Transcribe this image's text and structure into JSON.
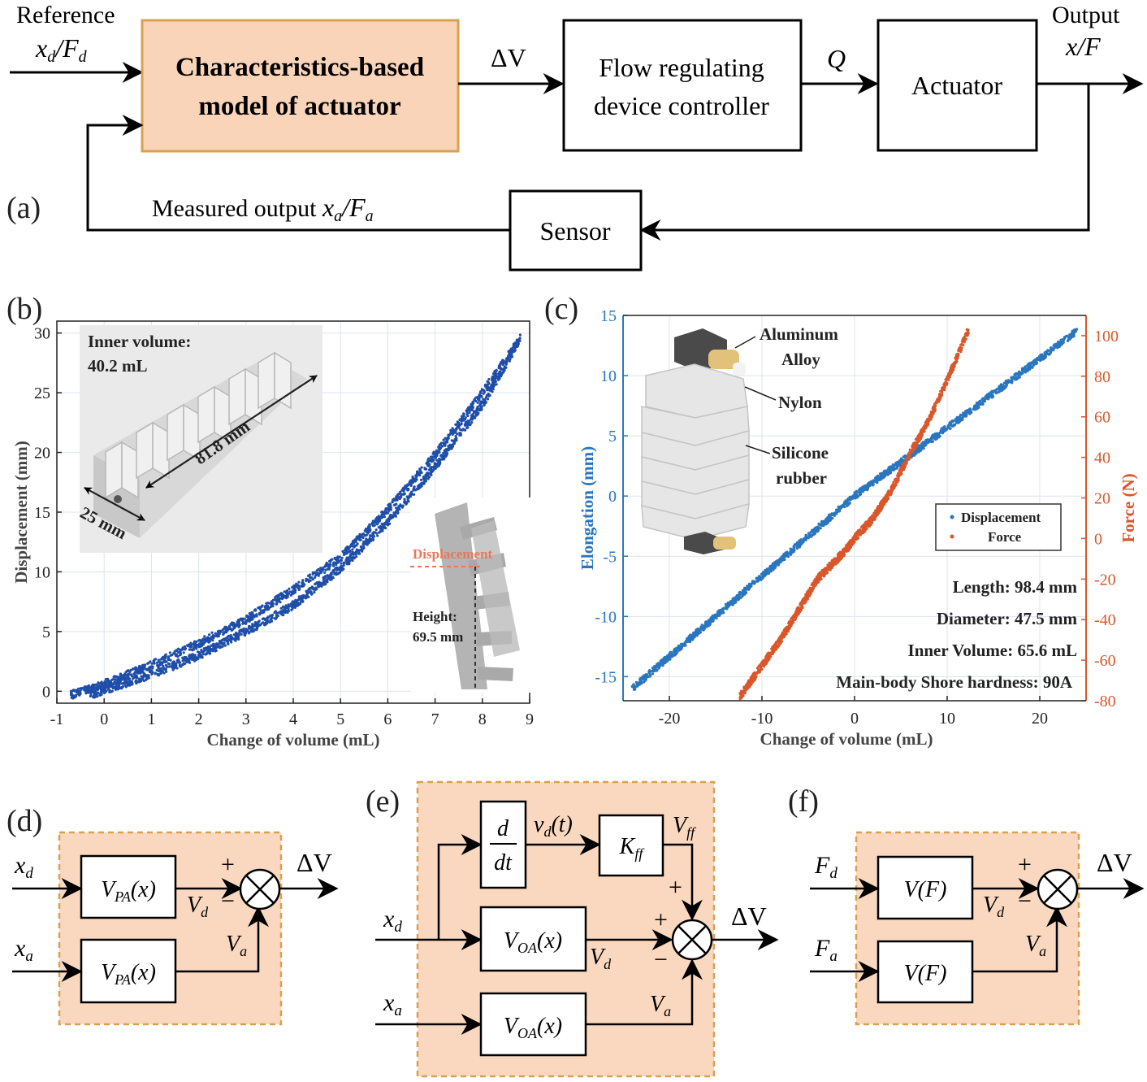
{
  "panel_a": {
    "panel_label": "(a)",
    "reference_label": "Reference",
    "reference_signal": "x_d / F_d",
    "model_block": [
      "Characteristics-based",
      "model of actuator"
    ],
    "delta_v": "ΔV",
    "controller_block": [
      "Flow regulating",
      "device controller"
    ],
    "q_label": "Q",
    "actuator_block": "Actuator",
    "output_label": "Output",
    "output_signal": "x / F",
    "measured_output": "Measured output x_a / F_a",
    "sensor_block": "Sensor",
    "colors": {
      "model_fill": "#fad4b8",
      "model_border": "#d9a050"
    }
  },
  "panel_b": {
    "panel_label": "(b)",
    "inset_inner_volume": [
      "Inner volume:",
      "40.2 mL"
    ],
    "dim_length": "81.8 mm",
    "dim_width": "25 mm",
    "displacement_note": "Displacement",
    "height_note": [
      "Height:",
      "69.5 mm"
    ],
    "colors": {
      "points": "#1f4ea8",
      "note": "#e6785a"
    }
  },
  "panel_c": {
    "panel_label": "(c)",
    "material_labels": [
      "Aluminum",
      "Alloy",
      "Nylon",
      "Silicone",
      "rubber"
    ],
    "specs": [
      "Length: 98.4 mm",
      "Diameter: 47.5 mm",
      "Inner Volume: 65.6 mL",
      "Main-body Shore hardness: 90A"
    ],
    "colors": {
      "displacement": "#2a76be",
      "force": "#d9572a"
    }
  },
  "panel_d": {
    "panel_label": "(d)",
    "input_top": "x_d",
    "input_bottom": "x_a",
    "block_top": "V_PA(x)",
    "block_bottom": "V_PA(x)",
    "vd": "V_d",
    "va": "V_a",
    "plus": "+",
    "minus": "−",
    "output": "ΔV"
  },
  "panel_e": {
    "panel_label": "(e)",
    "input_top": "x_d",
    "input_bottom": "x_a",
    "deriv_num": "d",
    "deriv_den": "dt",
    "vd_t": "v_d(t)",
    "kff": "K_ff",
    "vff": "V_ff",
    "block_mid": "V_OA(x)",
    "block_bottom": "V_OA(x)",
    "vd": "V_d",
    "va": "V_a",
    "plus": "+",
    "minus": "−",
    "output": "ΔV"
  },
  "panel_f": {
    "panel_label": "(f)",
    "input_top": "F_d",
    "input_bottom": "F_a",
    "block_top": "V(F)",
    "block_bottom": "V(F)",
    "vd": "V_d",
    "va": "V_a",
    "plus": "+",
    "minus": "−",
    "output": "ΔV"
  },
  "chart_data": [
    {
      "type": "scatter",
      "panel": "(b)",
      "xlabel": "Change of volume (mL)",
      "ylabel": "Displacement (mm)",
      "xlim": [
        -1,
        9
      ],
      "ylim": [
        -1,
        31
      ],
      "x_ticks": [
        -1,
        0,
        1,
        2,
        3,
        4,
        5,
        6,
        7,
        8,
        9
      ],
      "y_ticks": [
        0,
        5,
        10,
        15,
        20,
        25,
        30
      ],
      "grid": true,
      "series": [
        {
          "x": [
            -0.7,
            0,
            1,
            2,
            3,
            4,
            5,
            6,
            7,
            8,
            8.8
          ],
          "y": [
            -0.3,
            0.6,
            2.2,
            4.0,
            6.0,
            8.5,
            11.2,
            15.2,
            19.8,
            25.0,
            29.5
          ]
        },
        {
          "x": [
            -0.3,
            0,
            1,
            2,
            3,
            4,
            5,
            6,
            7,
            8,
            8.8
          ],
          "y": [
            -0.3,
            0.1,
            1.4,
            3.0,
            5.0,
            7.2,
            10.3,
            14.2,
            18.8,
            24.0,
            29.5
          ]
        }
      ]
    },
    {
      "type": "scatter",
      "panel": "(c)",
      "xlabel": "Change of volume (mL)",
      "ylabel": "Elongation (mm)",
      "y2label": "Force (N)",
      "xlim": [
        -25,
        25
      ],
      "ylim": [
        -17,
        15
      ],
      "y2lim": [
        -80,
        110
      ],
      "x_ticks": [
        -20,
        -10,
        0,
        10,
        20
      ],
      "y_ticks": [
        -15,
        -10,
        -5,
        0,
        5,
        10,
        15
      ],
      "y2_ticks": [
        -80,
        -60,
        -40,
        -20,
        0,
        20,
        40,
        60,
        80,
        100
      ],
      "grid": true,
      "legend_position": "right",
      "series": [
        {
          "name": "Displacement",
          "axis": "left",
          "x": [
            -24,
            -12,
            0,
            12,
            24
          ],
          "y": [
            -16,
            -8,
            0,
            6.8,
            13.7
          ]
        },
        {
          "name": "Force",
          "axis": "right",
          "x": [
            -12.4,
            -8,
            -4,
            -1,
            0,
            2,
            4,
            6,
            8,
            10,
            12.3
          ],
          "y": [
            -78,
            -50,
            -20,
            -6,
            0,
            10,
            24,
            42,
            58,
            78,
            103
          ]
        }
      ]
    }
  ]
}
